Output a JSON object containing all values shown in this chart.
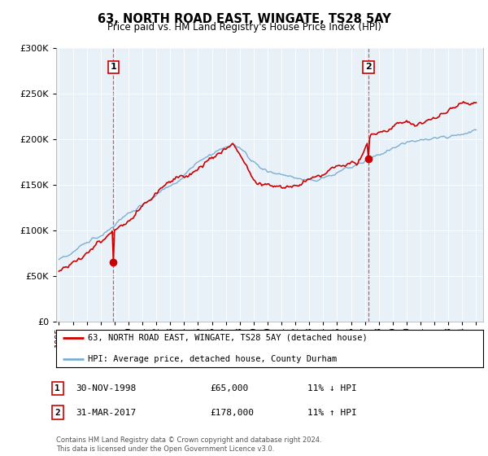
{
  "title": "63, NORTH ROAD EAST, WINGATE, TS28 5AY",
  "subtitle": "Price paid vs. HM Land Registry's House Price Index (HPI)",
  "legend_line1": "63, NORTH ROAD EAST, WINGATE, TS28 5AY (detached house)",
  "legend_line2": "HPI: Average price, detached house, County Durham",
  "marker1_date": "30-NOV-1998",
  "marker1_price": "£65,000",
  "marker1_hpi": "11% ↓ HPI",
  "marker2_date": "31-MAR-2017",
  "marker2_price": "£178,000",
  "marker2_hpi": "11% ↑ HPI",
  "footnote": "Contains HM Land Registry data © Crown copyright and database right 2024.\nThis data is licensed under the Open Government Licence v3.0.",
  "hpi_color": "#7bafd4",
  "price_color": "#cc0000",
  "marker_color": "#cc0000",
  "vline_color": "#dd4444",
  "background_color": "#ffffff",
  "chart_bg_color": "#e8f0f8",
  "grid_color": "#ffffff",
  "ylim": [
    0,
    300000
  ],
  "yticks": [
    0,
    50000,
    100000,
    150000,
    200000,
    250000,
    300000
  ],
  "xlim_start": 1994.8,
  "xlim_end": 2025.5,
  "m1_x": 1998.917,
  "m1_y": 65000,
  "m2_x": 2017.25,
  "m2_y": 178000
}
